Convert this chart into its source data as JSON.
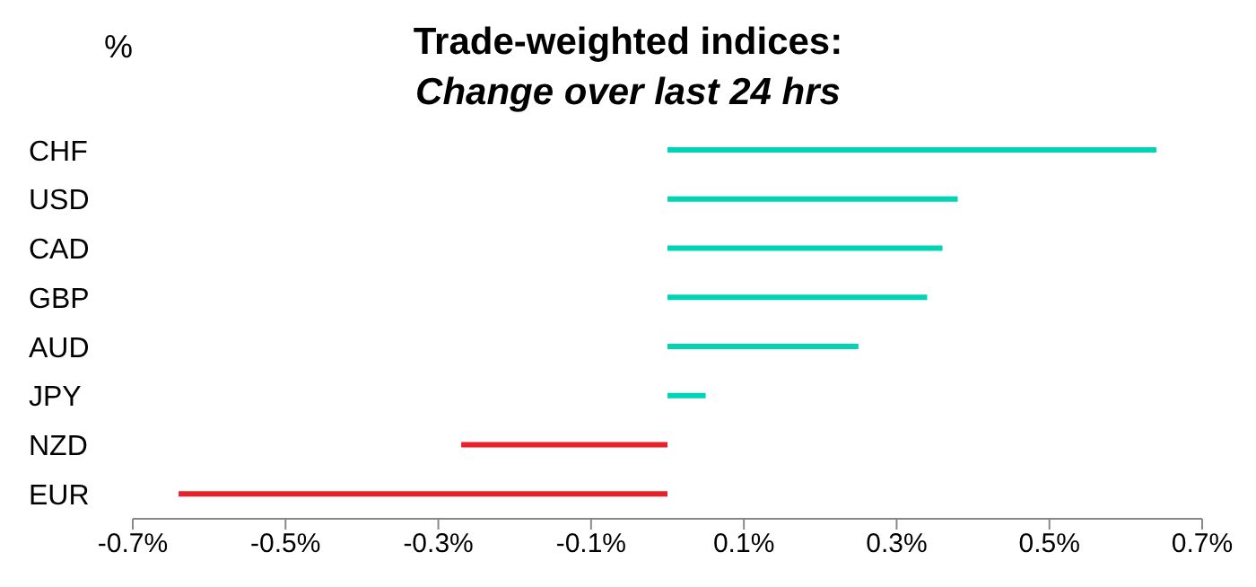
{
  "chart_data": {
    "type": "bar",
    "orientation": "horizontal",
    "title": "Trade-weighted indices:",
    "subtitle": "Change over last 24 hrs",
    "ylabel": "%",
    "categories": [
      "CHF",
      "USD",
      "CAD",
      "GBP",
      "AUD",
      "JPY",
      "NZD",
      "EUR"
    ],
    "values": [
      0.64,
      0.38,
      0.36,
      0.34,
      0.25,
      0.05,
      -0.27,
      -0.64
    ],
    "colors": [
      "#00d4b4",
      "#00d4b4",
      "#00d4b4",
      "#00d4b4",
      "#00d4b4",
      "#00d4b4",
      "#e8202a",
      "#e8202a"
    ],
    "xlim": [
      -0.7,
      0.7
    ],
    "xticks": [
      {
        "value": -0.7,
        "label": "-0.7%"
      },
      {
        "value": -0.5,
        "label": "-0.5%"
      },
      {
        "value": -0.3,
        "label": "-0.3%"
      },
      {
        "value": -0.1,
        "label": "-0.1%"
      },
      {
        "value": 0.1,
        "label": "0.1%"
      },
      {
        "value": 0.3,
        "label": "0.3%"
      },
      {
        "value": 0.5,
        "label": "0.5%"
      },
      {
        "value": 0.7,
        "label": "0.7%"
      }
    ],
    "grid": false
  }
}
